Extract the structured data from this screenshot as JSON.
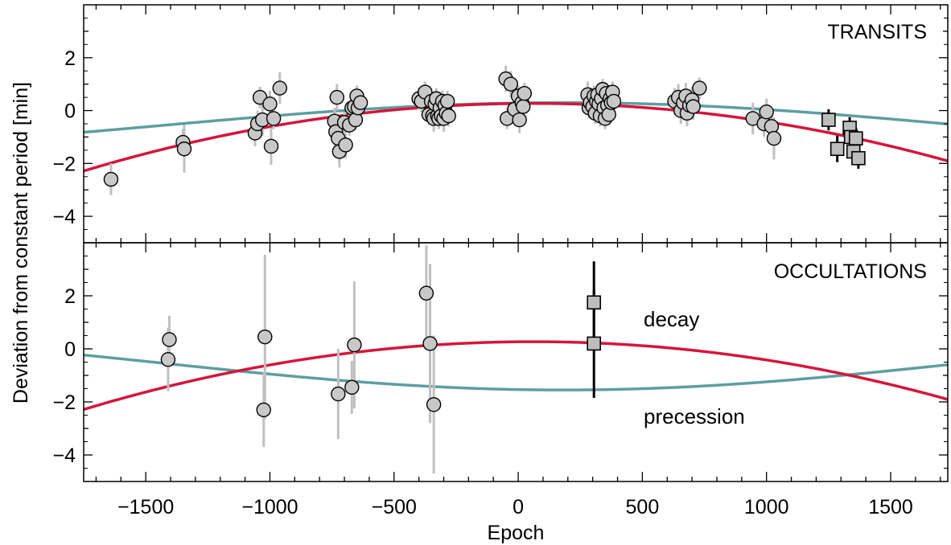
{
  "chart_data": {
    "type": "scatter",
    "xlabel": "Epoch",
    "ylabel": "Deviation from constant period [min]",
    "xlim": [
      -1750,
      1730
    ],
    "x_ticks": [
      -1500,
      -1000,
      -500,
      0,
      500,
      1000,
      1500
    ],
    "panels": [
      {
        "id": "transits",
        "label": "TRANSITS",
        "ylim": [
          -5,
          4
        ],
        "y_ticks": [
          -4,
          -2,
          0,
          2
        ],
        "models": [
          {
            "id": "decay",
            "color": "#d4163c",
            "curve": "quadratic",
            "params": {
              "a": 0.27,
              "x0": 60,
              "k": 7.8e-07
            }
          },
          {
            "id": "precession",
            "color": "#5f9ea0",
            "curve": "cosine",
            "params": {
              "offset": -0.55,
              "amp": 0.85,
              "period": 6400,
              "phase_x": 180
            }
          }
        ],
        "series": [
          {
            "marker": "circle",
            "errcolor": "#c0c0c0",
            "points": [
              {
                "x": -1640,
                "y": -2.6,
                "e": 0.6
              },
              {
                "x": -1350,
                "y": -1.2,
                "e": 0.5
              },
              {
                "x": -1345,
                "y": -1.45,
                "e": 0.9
              },
              {
                "x": -1060,
                "y": -0.85,
                "e": 0.5
              },
              {
                "x": -1050,
                "y": -0.5,
                "e": 0.5
              },
              {
                "x": -1040,
                "y": 0.5,
                "e": 0.4
              },
              {
                "x": -1030,
                "y": -0.35,
                "e": 0.6
              },
              {
                "x": -1000,
                "y": 0.25,
                "e": 0.5
              },
              {
                "x": -995,
                "y": -1.35,
                "e": 0.7
              },
              {
                "x": -985,
                "y": -0.3,
                "e": 0.4
              },
              {
                "x": -960,
                "y": 0.85,
                "e": 0.6
              },
              {
                "x": -740,
                "y": -0.4,
                "e": 0.5
              },
              {
                "x": -735,
                "y": -0.8,
                "e": 0.6
              },
              {
                "x": -730,
                "y": 0.5,
                "e": 0.5
              },
              {
                "x": -725,
                "y": -1.05,
                "e": 0.5
              },
              {
                "x": -720,
                "y": -1.55,
                "e": 0.6
              },
              {
                "x": -700,
                "y": -0.45,
                "e": 0.4
              },
              {
                "x": -695,
                "y": -1.3,
                "e": 0.5
              },
              {
                "x": -680,
                "y": -0.55,
                "e": 0.4
              },
              {
                "x": -670,
                "y": 0.1,
                "e": 0.4
              },
              {
                "x": -660,
                "y": 0.15,
                "e": 0.4
              },
              {
                "x": -655,
                "y": -0.35,
                "e": 0.4
              },
              {
                "x": -650,
                "y": 0.55,
                "e": 0.4
              },
              {
                "x": -645,
                "y": 0.1,
                "e": 0.4
              },
              {
                "x": -635,
                "y": 0.3,
                "e": 0.4
              },
              {
                "x": -400,
                "y": 0.45,
                "e": 0.4
              },
              {
                "x": -390,
                "y": 0.35,
                "e": 0.4
              },
              {
                "x": -375,
                "y": 0.7,
                "e": 0.4
              },
              {
                "x": -360,
                "y": -0.15,
                "e": 0.4
              },
              {
                "x": -350,
                "y": 0.35,
                "e": 0.4
              },
              {
                "x": -345,
                "y": -0.2,
                "e": 0.4
              },
              {
                "x": -340,
                "y": -0.3,
                "e": 0.5
              },
              {
                "x": -335,
                "y": 0.25,
                "e": 0.4
              },
              {
                "x": -330,
                "y": 0.45,
                "e": 0.4
              },
              {
                "x": -325,
                "y": -0.2,
                "e": 0.4
              },
              {
                "x": -320,
                "y": -0.3,
                "e": 0.4
              },
              {
                "x": -315,
                "y": 0.1,
                "e": 0.4
              },
              {
                "x": -310,
                "y": -0.2,
                "e": 0.4
              },
              {
                "x": -305,
                "y": 0.35,
                "e": 0.4
              },
              {
                "x": -300,
                "y": -0.3,
                "e": 0.5
              },
              {
                "x": -295,
                "y": 0.2,
                "e": 0.4
              },
              {
                "x": -290,
                "y": -0.1,
                "e": 0.4
              },
              {
                "x": -285,
                "y": 0.35,
                "e": 0.4
              },
              {
                "x": -280,
                "y": -0.2,
                "e": 0.4
              },
              {
                "x": -50,
                "y": 1.2,
                "e": 0.5
              },
              {
                "x": -45,
                "y": -0.3,
                "e": 0.4
              },
              {
                "x": -30,
                "y": 1.0,
                "e": 0.5
              },
              {
                "x": -15,
                "y": 0.05,
                "e": 0.4
              },
              {
                "x": 0,
                "y": 0.55,
                "e": 0.4
              },
              {
                "x": 5,
                "y": -0.35,
                "e": 0.5
              },
              {
                "x": 15,
                "y": 0.3,
                "e": 0.4
              },
              {
                "x": 20,
                "y": 0.15,
                "e": 0.4
              },
              {
                "x": 25,
                "y": 0.65,
                "e": 0.4
              },
              {
                "x": 280,
                "y": 0.6,
                "e": 0.5
              },
              {
                "x": 285,
                "y": 0.1,
                "e": 0.4
              },
              {
                "x": 290,
                "y": 0.3,
                "e": 0.5
              },
              {
                "x": 300,
                "y": 0.15,
                "e": 0.4
              },
              {
                "x": 305,
                "y": 0.55,
                "e": 0.4
              },
              {
                "x": 310,
                "y": -0.1,
                "e": 0.4
              },
              {
                "x": 315,
                "y": 0.35,
                "e": 0.4
              },
              {
                "x": 320,
                "y": 0.6,
                "e": 0.4
              },
              {
                "x": 325,
                "y": 0.25,
                "e": 0.4
              },
              {
                "x": 330,
                "y": -0.2,
                "e": 0.4
              },
              {
                "x": 335,
                "y": 0.45,
                "e": 0.4
              },
              {
                "x": 340,
                "y": 0.8,
                "e": 0.4
              },
              {
                "x": 345,
                "y": 0.1,
                "e": 0.4
              },
              {
                "x": 350,
                "y": -0.3,
                "e": 0.4
              },
              {
                "x": 355,
                "y": 0.65,
                "e": 0.4
              },
              {
                "x": 360,
                "y": 0.2,
                "e": 0.4
              },
              {
                "x": 365,
                "y": -0.15,
                "e": 0.4
              },
              {
                "x": 370,
                "y": 0.45,
                "e": 0.4
              },
              {
                "x": 375,
                "y": 0.3,
                "e": 0.4
              },
              {
                "x": 380,
                "y": 0.7,
                "e": 0.4
              },
              {
                "x": 385,
                "y": 0.35,
                "e": 0.4
              },
              {
                "x": 630,
                "y": 0.35,
                "e": 0.5
              },
              {
                "x": 645,
                "y": 0.5,
                "e": 0.5
              },
              {
                "x": 655,
                "y": 0.0,
                "e": 0.5
              },
              {
                "x": 665,
                "y": 0.3,
                "e": 0.5
              },
              {
                "x": 675,
                "y": 0.55,
                "e": 0.5
              },
              {
                "x": 680,
                "y": -0.1,
                "e": 0.5
              },
              {
                "x": 690,
                "y": 0.2,
                "e": 0.5
              },
              {
                "x": 700,
                "y": 0.4,
                "e": 0.5
              },
              {
                "x": 705,
                "y": 0.15,
                "e": 0.5
              },
              {
                "x": 730,
                "y": 0.85,
                "e": 0.4
              },
              {
                "x": 945,
                "y": -0.3,
                "e": 0.6
              },
              {
                "x": 990,
                "y": -0.5,
                "e": 0.5
              },
              {
                "x": 1000,
                "y": -0.05,
                "e": 0.5
              },
              {
                "x": 1020,
                "y": -0.6,
                "e": 0.6
              },
              {
                "x": 1030,
                "y": -1.05,
                "e": 0.8
              }
            ]
          },
          {
            "marker": "square",
            "errcolor": "#000000",
            "points": [
              {
                "x": 1250,
                "y": -0.35,
                "e": 0.4
              },
              {
                "x": 1285,
                "y": -1.45,
                "e": 0.5
              },
              {
                "x": 1335,
                "y": -0.65,
                "e": 0.4
              },
              {
                "x": 1340,
                "y": -1.0,
                "e": 0.5
              },
              {
                "x": 1350,
                "y": -1.55,
                "e": 0.4
              },
              {
                "x": 1360,
                "y": -1.05,
                "e": 0.4
              },
              {
                "x": 1370,
                "y": -1.8,
                "e": 0.4
              }
            ]
          }
        ]
      },
      {
        "id": "occultations",
        "label": "OCCULTATIONS",
        "ylim": [
          -5,
          4
        ],
        "y_ticks": [
          -4,
          -2,
          0,
          2
        ],
        "models": [
          {
            "id": "decay",
            "label": "decay",
            "color": "#d4163c",
            "curve": "quadratic",
            "params": {
              "a": 0.27,
              "x0": 60,
              "k": 7.8e-07
            }
          },
          {
            "id": "precession",
            "label": "precession",
            "color": "#5f9ea0",
            "curve": "cosine",
            "params": {
              "offset": -0.55,
              "amp": -1.0,
              "period": 6400,
              "phase_x": 180
            }
          }
        ],
        "series": [
          {
            "marker": "circle",
            "errcolor": "#c0c0c0",
            "points": [
              {
                "x": -1405,
                "y": 0.35,
                "e": 0.9
              },
              {
                "x": -1410,
                "y": -0.4,
                "e": 1.2
              },
              {
                "x": -1025,
                "y": -2.3,
                "e": 1.4
              },
              {
                "x": -1020,
                "y": 0.45,
                "e": 3.1
              },
              {
                "x": -725,
                "y": -1.7,
                "e": 1.7
              },
              {
                "x": -670,
                "y": -1.45,
                "e": 1.0
              },
              {
                "x": -660,
                "y": 0.15,
                "e": 2.4
              },
              {
                "x": -370,
                "y": 2.1,
                "e": 1.8
              },
              {
                "x": -355,
                "y": 0.2,
                "e": 3.0
              },
              {
                "x": -340,
                "y": -2.1,
                "e": 2.6
              }
            ]
          },
          {
            "marker": "square",
            "errcolor": "#000000",
            "points": [
              {
                "x": 305,
                "y": 1.75,
                "e": 1.55
              },
              {
                "x": 305,
                "y": 0.2,
                "e": 2.05
              }
            ]
          }
        ]
      }
    ]
  }
}
